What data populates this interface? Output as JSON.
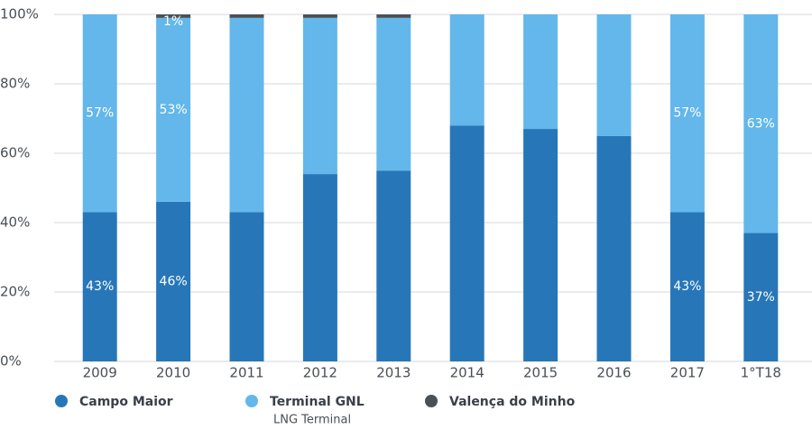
{
  "chart_data": {
    "type": "stacked_bar",
    "categories": [
      "2009",
      "2010",
      "2011",
      "2012",
      "2013",
      "2014",
      "2015",
      "2016",
      "2017",
      "1°T18"
    ],
    "series": [
      {
        "name": "Campo Maior",
        "color": "#2777b8",
        "values": [
          43,
          46,
          43,
          54,
          55,
          68,
          67,
          65,
          43,
          37
        ],
        "value_labels": [
          "43%",
          "46%",
          null,
          null,
          null,
          null,
          null,
          null,
          "43%",
          "37%"
        ]
      },
      {
        "name": "Terminal GNL",
        "subname": "LNG Terminal",
        "color": "#63b7ea",
        "values": [
          57,
          53,
          56,
          45,
          44,
          32,
          33,
          35,
          57,
          63
        ],
        "value_labels": [
          "57%",
          "53%",
          null,
          null,
          null,
          null,
          null,
          null,
          "57%",
          "63%"
        ]
      },
      {
        "name": "Valença do Minho",
        "color": "#4a5058",
        "values": [
          0,
          1,
          1,
          1,
          1,
          0,
          0,
          0,
          0,
          0
        ],
        "value_labels": [
          null,
          "1%",
          null,
          null,
          null,
          null,
          null,
          null,
          null,
          null
        ]
      }
    ],
    "ylim": [
      0,
      100
    ],
    "yticks": [
      {
        "value": 0,
        "label": "0%"
      },
      {
        "value": 20,
        "label": "20%"
      },
      {
        "value": 40,
        "label": "40%"
      },
      {
        "value": 60,
        "label": "60%"
      },
      {
        "value": 80,
        "label": "80%"
      },
      {
        "value": 100,
        "label": "100%"
      }
    ],
    "grid": true,
    "legend": "bottom"
  }
}
